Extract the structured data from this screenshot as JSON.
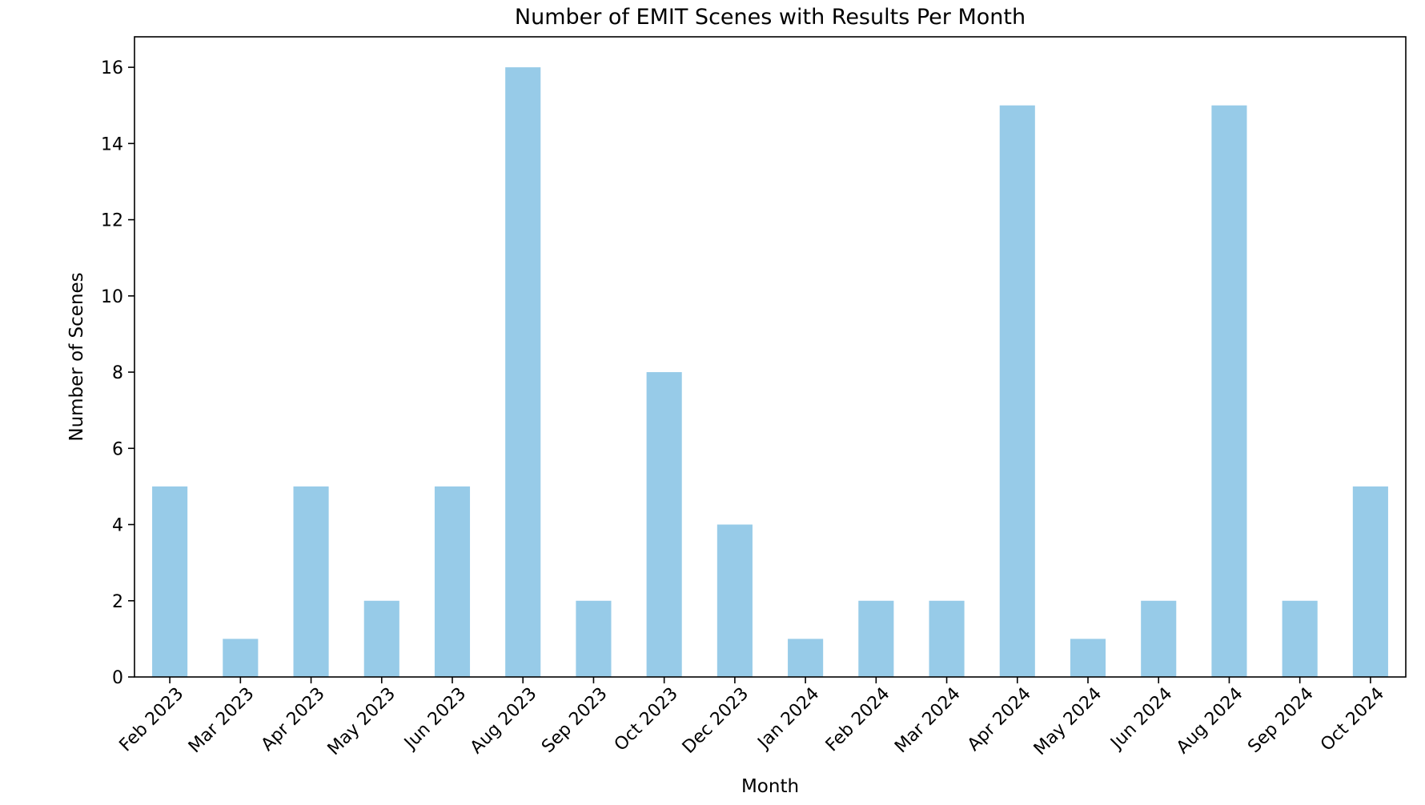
{
  "chart_data": {
    "type": "bar",
    "title": "Number of EMIT Scenes with Results Per Month",
    "xlabel": "Month",
    "ylabel": "Number of Scenes",
    "categories": [
      "Feb 2023",
      "Mar 2023",
      "Apr 2023",
      "May 2023",
      "Jun 2023",
      "Aug 2023",
      "Sep 2023",
      "Oct 2023",
      "Dec 2023",
      "Jan 2024",
      "Feb 2024",
      "Mar 2024",
      "Apr 2024",
      "May 2024",
      "Jun 2024",
      "Aug 2024",
      "Sep 2024",
      "Oct 2024"
    ],
    "values": [
      5,
      1,
      5,
      2,
      5,
      16,
      2,
      8,
      4,
      1,
      2,
      2,
      15,
      1,
      2,
      15,
      2,
      5
    ],
    "ylim": [
      0,
      16.8
    ],
    "yticks": [
      0,
      2,
      4,
      6,
      8,
      10,
      12,
      14,
      16
    ],
    "bar_color": "#97cbe8",
    "grid": false,
    "legend": "none"
  }
}
